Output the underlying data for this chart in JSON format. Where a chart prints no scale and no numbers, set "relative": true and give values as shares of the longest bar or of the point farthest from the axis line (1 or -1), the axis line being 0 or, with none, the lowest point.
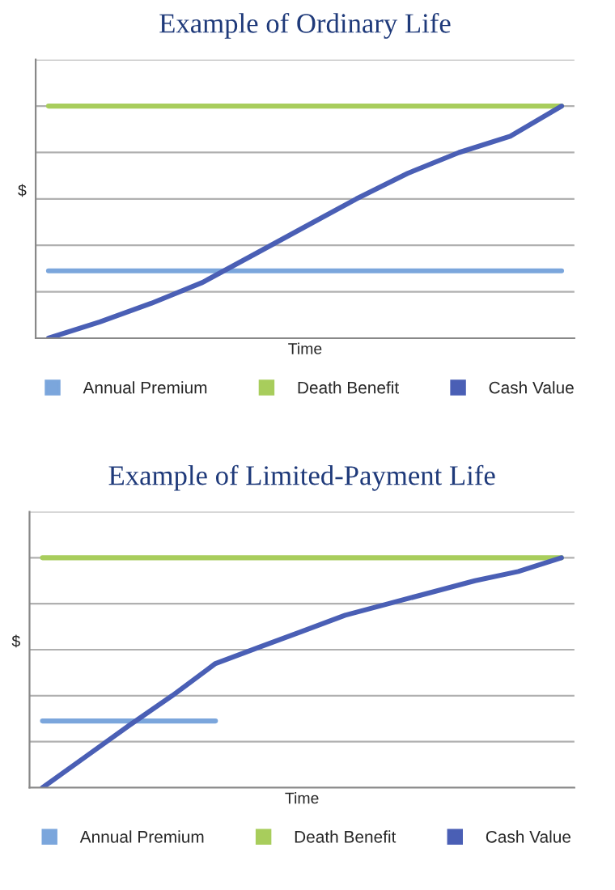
{
  "chart_data": [
    {
      "type": "line",
      "title": "Example of Ordinary Life",
      "xlabel": "Time",
      "ylabel": "$",
      "relative": true,
      "grid": "y",
      "legend": "bottom",
      "tick_labels": false,
      "line_style": "solid",
      "marker": "none",
      "categories": [
        null,
        null,
        null,
        null,
        null,
        null,
        null,
        null,
        null,
        null,
        null
      ],
      "series": [
        {
          "name": "Annual Premium",
          "color": "#7ba6dc",
          "values": [
            0.29,
            0.29,
            0.29,
            0.29,
            0.29,
            0.29,
            0.29,
            0.29,
            0.29,
            0.29,
            0.29
          ]
        },
        {
          "name": "Death Benefit",
          "color": "#a8cd5c",
          "values": [
            1,
            1,
            1,
            1,
            1,
            1,
            1,
            1,
            1,
            1,
            1
          ]
        },
        {
          "name": "Cash Value",
          "color": "#4a5fb5",
          "values": [
            0,
            0.07,
            0.15,
            0.24,
            0.36,
            0.48,
            0.6,
            0.71,
            0.8,
            0.87,
            1
          ]
        }
      ]
    },
    {
      "type": "line",
      "title": "Example of Limited-Payment Life",
      "xlabel": "Time",
      "ylabel": "$",
      "relative": true,
      "grid": "y",
      "legend": "bottom",
      "tick_labels": false,
      "line_style": "solid",
      "marker": "none",
      "categories": [
        null,
        null,
        null,
        null,
        null,
        null,
        null,
        null,
        null,
        null,
        null,
        null,
        null
      ],
      "series": [
        {
          "name": "Annual Premium",
          "color": "#7ba6dc",
          "values": [
            0.29,
            0.29,
            0.29,
            0.29,
            0.29,
            null,
            null,
            null,
            null,
            null,
            null,
            null,
            null
          ]
        },
        {
          "name": "Death Benefit",
          "color": "#a8cd5c",
          "values": [
            1,
            1,
            1,
            1,
            1,
            1,
            1,
            1,
            1,
            1,
            1,
            1,
            1
          ]
        },
        {
          "name": "Cash Value",
          "color": "#4a5fb5",
          "values": [
            0,
            0.135,
            0.27,
            0.4,
            0.54,
            0.61,
            0.68,
            0.75,
            0.8,
            0.85,
            0.9,
            0.94,
            1
          ]
        }
      ]
    }
  ]
}
